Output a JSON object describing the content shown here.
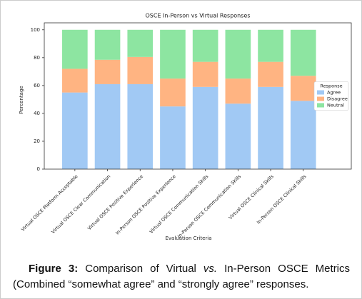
{
  "chart_data": {
    "type": "stacked_bar",
    "title": "OSCE In-Person vs Virtual Responses",
    "x_label": "Evaluation Criteria",
    "y_label": "Percentage",
    "categories": [
      "Virtual OSCE Platform Acceptable",
      "Virtual OSCE Clear Communication",
      "Virtual OSCE Positive Experience",
      "In-Person OSCE Positive Experience",
      "Virtual OSCE Communication Skills",
      "In-Person OSCE Communication Skills",
      "Virtual OSCE Clinical Skills",
      "In-Person OSCE Clinical Skills"
    ],
    "series": [
      {
        "name": "Agree",
        "color": "#a1c9f4",
        "values": [
          55,
          61,
          61,
          45,
          59,
          47,
          59,
          49
        ]
      },
      {
        "name": "Disagree",
        "color": "#ffb482",
        "values": [
          17,
          17.5,
          19.5,
          20,
          18,
          18,
          18,
          18
        ]
      },
      {
        "name": "Neutral",
        "color": "#8de5a1",
        "values": [
          28,
          21.5,
          19.5,
          35,
          23,
          35,
          23,
          33
        ]
      }
    ],
    "legend_title": "Response",
    "legend": "center right",
    "ylim": [
      0,
      105
    ],
    "yticks": [
      0,
      20,
      40,
      60,
      80,
      100
    ]
  },
  "figure_caption": {
    "label": "Figure 3:",
    "parts": [
      "Comparison of Virtual ",
      "vs.",
      " In-Person OSCE Metrics (Combined “somewhat agree” and “strongly agree” responses."
    ]
  }
}
